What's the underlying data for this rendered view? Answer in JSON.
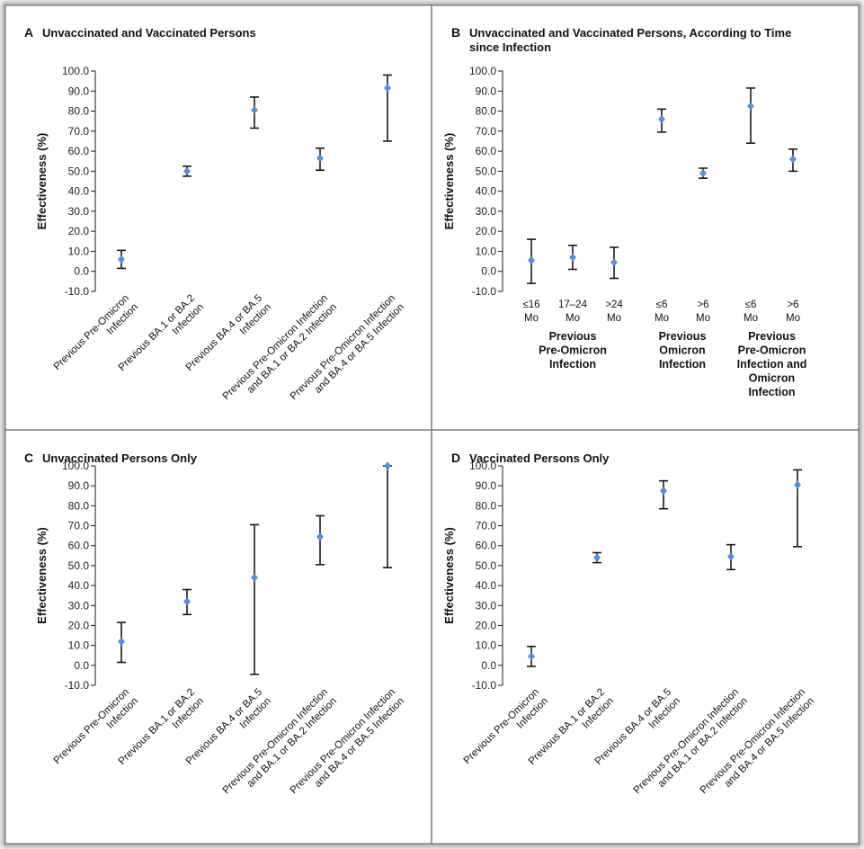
{
  "chart_data": [
    {
      "id": "A",
      "type": "scatter",
      "panel_label": "A",
      "title": "Unvaccinated and Vaccinated Persons",
      "ylabel": "Effectiveness (%)",
      "ylim": [
        -10,
        100
      ],
      "yticks": [
        "-10.0",
        "0.0",
        "10.0",
        "20.0",
        "30.0",
        "40.0",
        "50.0",
        "60.0",
        "70.0",
        "80.0",
        "90.0",
        "100.0"
      ],
      "categories": [
        [
          "Previous Pre-Omicron",
          "Infection"
        ],
        [
          "Previous BA.1 or BA.2",
          "Infection"
        ],
        [
          "Previous BA.4 or BA.5",
          "Infection"
        ],
        [
          "Previous Pre-Omicron Infection",
          "and BA.1 or BA.2 Infection"
        ],
        [
          "Previous Pre-Omicron Infection",
          "and BA.4 or BA.5 Infection"
        ]
      ],
      "points": [
        {
          "estimate": 6.0,
          "lower": 1.5,
          "upper": 10.5
        },
        {
          "estimate": 50.0,
          "lower": 47.5,
          "upper": 52.5
        },
        {
          "estimate": 80.5,
          "lower": 71.5,
          "upper": 87.0
        },
        {
          "estimate": 56.5,
          "lower": 50.5,
          "upper": 61.5
        },
        {
          "estimate": 91.5,
          "lower": 65.0,
          "upper": 98.0
        }
      ]
    },
    {
      "id": "B",
      "type": "scatter",
      "panel_label": "B",
      "title": "Unvaccinated and Vaccinated Persons, According to Time since Infection",
      "title_lines": [
        "Unvaccinated and Vaccinated Persons, According to Time",
        "since Infection"
      ],
      "ylabel": "Effectiveness (%)",
      "ylim": [
        -10,
        100
      ],
      "yticks": [
        "-10.0",
        "0.0",
        "10.0",
        "20.0",
        "30.0",
        "40.0",
        "50.0",
        "60.0",
        "70.0",
        "80.0",
        "90.0",
        "100.0"
      ],
      "categories": [
        [
          "≤16",
          "Mo"
        ],
        [
          "17–24",
          "Mo"
        ],
        [
          ">24",
          "Mo"
        ],
        [
          "≤6",
          "Mo"
        ],
        [
          ">6",
          "Mo"
        ],
        [
          "≤6",
          "Mo"
        ],
        [
          ">6",
          "Mo"
        ]
      ],
      "groups": [
        {
          "label_lines": [
            "Previous",
            "Pre-Omicron",
            "Infection"
          ],
          "members": [
            0,
            1,
            2
          ]
        },
        {
          "label_lines": [
            "Previous",
            "Omicron",
            "Infection"
          ],
          "members": [
            3,
            4
          ]
        },
        {
          "label_lines": [
            "Previous",
            "Pre-Omicron",
            "Infection and",
            "Omicron",
            "Infection"
          ],
          "members": [
            5,
            6
          ]
        }
      ],
      "points": [
        {
          "estimate": 5.5,
          "lower": -6.0,
          "upper": 16.0
        },
        {
          "estimate": 7.0,
          "lower": 1.0,
          "upper": 13.0
        },
        {
          "estimate": 4.5,
          "lower": -3.5,
          "upper": 12.0
        },
        {
          "estimate": 76.0,
          "lower": 69.5,
          "upper": 81.0
        },
        {
          "estimate": 49.0,
          "lower": 46.5,
          "upper": 51.5
        },
        {
          "estimate": 82.5,
          "lower": 64.0,
          "upper": 91.5
        },
        {
          "estimate": 56.0,
          "lower": 50.0,
          "upper": 61.0
        }
      ]
    },
    {
      "id": "C",
      "type": "scatter",
      "panel_label": "C",
      "title": "Unvaccinated Persons Only",
      "ylabel": "Effectiveness (%)",
      "ylim": [
        -10,
        100
      ],
      "yticks": [
        "-10.0",
        "0.0",
        "10.0",
        "20.0",
        "30.0",
        "40.0",
        "50.0",
        "60.0",
        "70.0",
        "80.0",
        "90.0",
        "100.0"
      ],
      "categories": [
        [
          "Previous Pre-Omicron",
          "Infection"
        ],
        [
          "Previous BA.1 or BA.2",
          "Infection"
        ],
        [
          "Previous BA.4 or BA.5",
          "Infection"
        ],
        [
          "Previous Pre-Omicron Infection",
          "and BA.1 or BA.2 Infection"
        ],
        [
          "Previous Pre-Omicron Infection",
          "and BA.4 or BA.5 Infection"
        ]
      ],
      "points": [
        {
          "estimate": 12.0,
          "lower": 1.5,
          "upper": 21.5
        },
        {
          "estimate": 32.0,
          "lower": 25.5,
          "upper": 38.0
        },
        {
          "estimate": 44.0,
          "lower": -4.5,
          "upper": 70.5
        },
        {
          "estimate": 64.5,
          "lower": 50.5,
          "upper": 75.0
        },
        {
          "estimate": 100.0,
          "lower": 49.0,
          "upper": 100.0
        }
      ]
    },
    {
      "id": "D",
      "type": "scatter",
      "panel_label": "D",
      "title": "Vaccinated Persons Only",
      "ylabel": "Effectiveness (%)",
      "ylim": [
        -10,
        100
      ],
      "yticks": [
        "-10.0",
        "0.0",
        "10.0",
        "20.0",
        "30.0",
        "40.0",
        "50.0",
        "60.0",
        "70.0",
        "80.0",
        "90.0",
        "100.0"
      ],
      "categories": [
        [
          "Previous Pre-Omicron",
          "Infection"
        ],
        [
          "Previous BA.1 or BA.2",
          "Infection"
        ],
        [
          "Previous BA.4 or BA.5",
          "Infection"
        ],
        [
          "Previous Pre-Omicron Infection",
          "and BA.1 or BA.2 Infection"
        ],
        [
          "Previous Pre-Omicron Infection",
          "and BA.4 or BA.5 Infection"
        ]
      ],
      "points": [
        {
          "estimate": 4.5,
          "lower": -0.5,
          "upper": 9.5
        },
        {
          "estimate": 54.0,
          "lower": 51.5,
          "upper": 56.5
        },
        {
          "estimate": 87.5,
          "lower": 78.5,
          "upper": 92.5
        },
        {
          "estimate": 54.5,
          "lower": 48.0,
          "upper": 60.5
        },
        {
          "estimate": 90.5,
          "lower": 59.5,
          "upper": 98.0
        }
      ]
    }
  ],
  "colors": {
    "marker": "#5b8fd6",
    "errorbar": "#1a1a1a",
    "frame": "#7a7a7a",
    "text": "#111111"
  }
}
